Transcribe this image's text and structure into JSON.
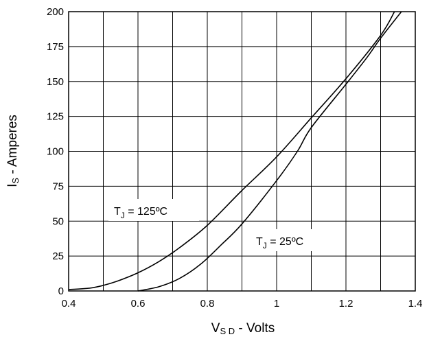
{
  "chart_data": {
    "type": "line",
    "xlabel": {
      "main": "V",
      "sub": "S D",
      "rest": " - Volts"
    },
    "ylabel": {
      "main": "I",
      "sub": "S",
      "rest": " - Amperes"
    },
    "xlim": [
      0.4,
      1.4
    ],
    "ylim": [
      0,
      200
    ],
    "x_ticks": [
      "0.4",
      "0.6",
      "0.8",
      "1",
      "1.2",
      "1.4"
    ],
    "y_ticks": [
      "0",
      "25",
      "50",
      "75",
      "100",
      "125",
      "150",
      "175",
      "200"
    ],
    "grid": true,
    "series": [
      {
        "name": {
          "main": "T",
          "sub": "J",
          "rest": " = 125ºC"
        },
        "x": [
          0.4,
          0.46,
          0.5,
          0.54,
          0.6,
          0.66,
          0.72,
          0.8,
          0.9,
          1.0,
          1.1,
          1.2,
          1.3,
          1.34
        ],
        "y": [
          1,
          2,
          4,
          7,
          13,
          21,
          31,
          47,
          72,
          96,
          124,
          152,
          183,
          200
        ]
      },
      {
        "name": {
          "main": "T",
          "sub": "J",
          "rest": " = 25ºC"
        },
        "x": [
          0.6,
          0.66,
          0.72,
          0.78,
          0.84,
          0.9,
          1.0,
          1.06,
          1.1,
          1.2,
          1.26,
          1.3,
          1.36
        ],
        "y": [
          0,
          3,
          9,
          19,
          33,
          48,
          79,
          100,
          117,
          148,
          167,
          181,
          200
        ]
      }
    ]
  }
}
